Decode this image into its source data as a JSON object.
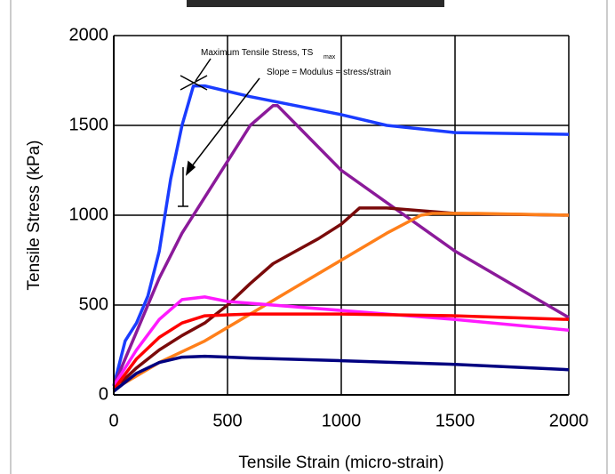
{
  "chart_data": {
    "type": "line",
    "annotations": [
      "Maximum Tensile Stress, TS",
      "max",
      "Slope = Modulus = stress/strain"
    ],
    "xlabel": "Tensile Strain (micro-strain)",
    "ylabel": "Tensile Stress (kPa)",
    "xlim": [
      0,
      2000
    ],
    "xticks": [
      0,
      500,
      1000,
      1500,
      2000
    ],
    "ylim": [
      0,
      2000
    ],
    "yticks": [
      0,
      500,
      1000,
      1500,
      2000
    ],
    "grid": true,
    "series": [
      {
        "color": "#1a3cff",
        "x": [
          0,
          50,
          100,
          150,
          200,
          250,
          300,
          350,
          400,
          600,
          1000,
          1200,
          1500,
          2000
        ],
        "values": [
          50,
          300,
          400,
          550,
          800,
          1200,
          1500,
          1720,
          1720,
          1660,
          1560,
          1500,
          1460,
          1450
        ]
      },
      {
        "color": "#8b1a9a",
        "x": [
          0,
          100,
          200,
          300,
          400,
          500,
          600,
          700,
          720,
          1000,
          1500,
          2000
        ],
        "values": [
          50,
          350,
          650,
          900,
          1100,
          1300,
          1500,
          1610,
          1610,
          1250,
          800,
          430
        ]
      },
      {
        "color": "#7a0a0a",
        "x": [
          0,
          100,
          200,
          300,
          400,
          500,
          600,
          700,
          800,
          900,
          1000,
          1080,
          1200,
          1500,
          2000
        ],
        "values": [
          30,
          150,
          250,
          330,
          400,
          500,
          620,
          730,
          800,
          870,
          950,
          1040,
          1040,
          1010,
          1000
        ]
      },
      {
        "color": "#ff7f1a",
        "x": [
          0,
          200,
          400,
          600,
          800,
          1000,
          1200,
          1350,
          1400,
          1600,
          2000
        ],
        "values": [
          30,
          180,
          300,
          450,
          600,
          750,
          900,
          1000,
          1010,
          1010,
          1000
        ]
      },
      {
        "color": "#ff1aff",
        "x": [
          0,
          100,
          200,
          300,
          400,
          500,
          1000,
          1500,
          2000
        ],
        "values": [
          50,
          250,
          420,
          530,
          545,
          520,
          470,
          420,
          360
        ]
      },
      {
        "color": "#ff0000",
        "x": [
          0,
          100,
          200,
          300,
          400,
          600,
          1000,
          1500,
          2000
        ],
        "values": [
          30,
          200,
          320,
          400,
          440,
          450,
          450,
          440,
          420
        ]
      },
      {
        "color": "#000080",
        "x": [
          0,
          100,
          200,
          300,
          400,
          600,
          1000,
          1500,
          2000
        ],
        "values": [
          20,
          120,
          180,
          210,
          215,
          205,
          190,
          170,
          140
        ]
      }
    ]
  }
}
